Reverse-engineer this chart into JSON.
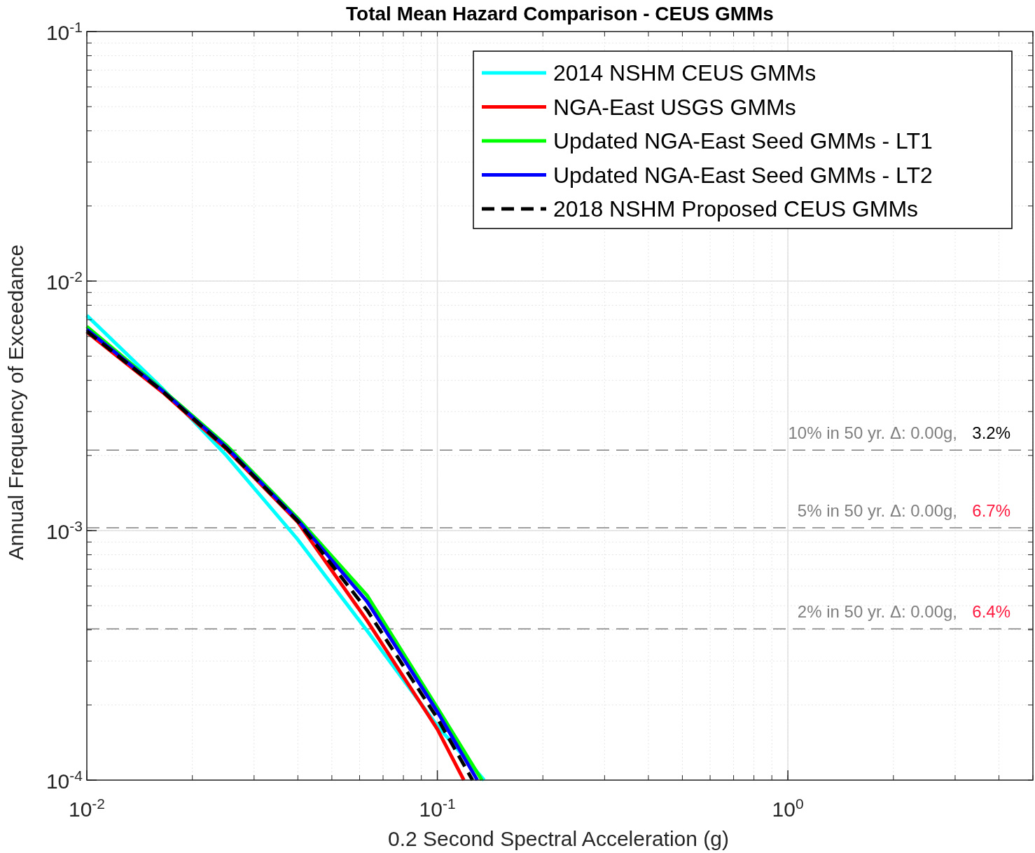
{
  "chart_data": {
    "type": "line",
    "title": "Total Mean Hazard Comparison - CEUS GMMs",
    "xlabel": "0.2 Second Spectral Acceleration (g)",
    "ylabel": "Annual Frequency of Exceedance",
    "log": "xy",
    "grid": true,
    "legend": "top right",
    "xlim": [
      0.01,
      5
    ],
    "ylim": [
      0.0001,
      0.1
    ],
    "xticks": [
      {
        "value": 0.01,
        "label": "10$^{-2}$"
      },
      {
        "value": 0.1,
        "label": "10$^{-1}$"
      },
      {
        "value": 1,
        "label": "10$^{0}$"
      }
    ],
    "yticks": [
      {
        "value": 0.0001,
        "label": "10$^{-4}$"
      },
      {
        "value": 0.001,
        "label": "10$^{-3}$"
      },
      {
        "value": 0.01,
        "label": "10$^{-2}$"
      },
      {
        "value": 0.1,
        "label": "10$^{-1}$"
      }
    ],
    "series": [
      {
        "name": "2014 NSHM CEUS GMMs",
        "color": "#00ffff",
        "line_style": "solid",
        "x": [
          0.01,
          0.0165,
          0.025,
          0.04,
          0.063,
          0.1,
          0.136
        ],
        "values": [
          0.00728,
          0.00369,
          0.002,
          0.00092,
          0.000397,
          0.000165,
          0.0001
        ]
      },
      {
        "name": "NGA-East USGS GMMs",
        "color": "#ff0000",
        "line_style": "solid",
        "x": [
          0.01,
          0.0165,
          0.025,
          0.04,
          0.063,
          0.1,
          0.119
        ],
        "values": [
          0.00624,
          0.00357,
          0.00212,
          0.00108,
          0.000436,
          0.00016,
          0.0001
        ]
      },
      {
        "name": "Updated NGA-East Seed GMMs - LT1",
        "color": "#00ff00",
        "line_style": "solid",
        "x": [
          0.01,
          0.0165,
          0.025,
          0.04,
          0.063,
          0.1,
          0.134
        ],
        "values": [
          0.00657,
          0.00365,
          0.0022,
          0.00112,
          0.00055,
          0.000195,
          0.0001
        ]
      },
      {
        "name": "Updated NGA-East Seed GMMs - LT2",
        "color": "#0000ff",
        "line_style": "solid",
        "x": [
          0.01,
          0.0165,
          0.025,
          0.04,
          0.063,
          0.1,
          0.13
        ],
        "values": [
          0.0064,
          0.00362,
          0.00216,
          0.0011,
          0.00052,
          0.000188,
          0.0001
        ]
      },
      {
        "name": "2018 NSHM Proposed CEUS GMMs",
        "color": "#000000",
        "line_style": "dashed",
        "x": [
          0.01,
          0.0165,
          0.025,
          0.04,
          0.063,
          0.1,
          0.126
        ],
        "values": [
          0.0063,
          0.0036,
          0.00214,
          0.00109,
          0.00048,
          0.000177,
          0.0001
        ]
      }
    ],
    "ref_lines": [
      {
        "axis": "y",
        "value": 0.0021,
        "label": "10% in 50 yr. Δ: 0.00g,",
        "color": "#808080",
        "line_style": "dashed"
      },
      {
        "axis": "y",
        "value": 0.001026,
        "label": "5% in 50 yr. Δ: 0.00g,",
        "color": "#808080",
        "line_style": "dashed"
      },
      {
        "axis": "y",
        "value": 0.000404,
        "label": "2% in 50 yr. Δ: 0.00g,",
        "color": "#808080",
        "line_style": "dashed"
      }
    ],
    "annotations": [
      "3.2%",
      "6.7%",
      "6.4%"
    ]
  }
}
